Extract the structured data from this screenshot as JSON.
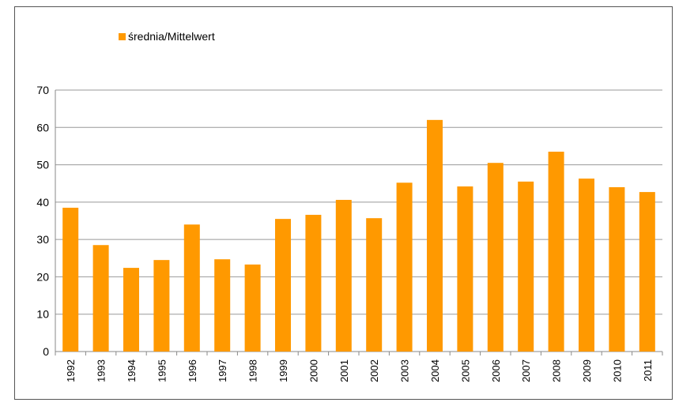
{
  "chart_data": {
    "type": "bar",
    "categories": [
      "1992",
      "1993",
      "1994",
      "1995",
      "1996",
      "1997",
      "1998",
      "1999",
      "2000",
      "2001",
      "2002",
      "2003",
      "2004",
      "2005",
      "2006",
      "2007",
      "2008",
      "2009",
      "2010",
      "2011"
    ],
    "series": [
      {
        "name": "średnia/Mittelwert",
        "color": "#ff9900",
        "values": [
          38.5,
          28.5,
          22.4,
          24.5,
          34,
          24.7,
          23.3,
          35.5,
          36.6,
          40.6,
          35.7,
          45.2,
          62,
          44.2,
          50.5,
          45.5,
          53.5,
          46.3,
          44,
          42.7
        ]
      }
    ],
    "ylim": [
      0,
      70
    ],
    "yticks": [
      0,
      10,
      20,
      30,
      40,
      50,
      60,
      70
    ],
    "grid": true
  }
}
